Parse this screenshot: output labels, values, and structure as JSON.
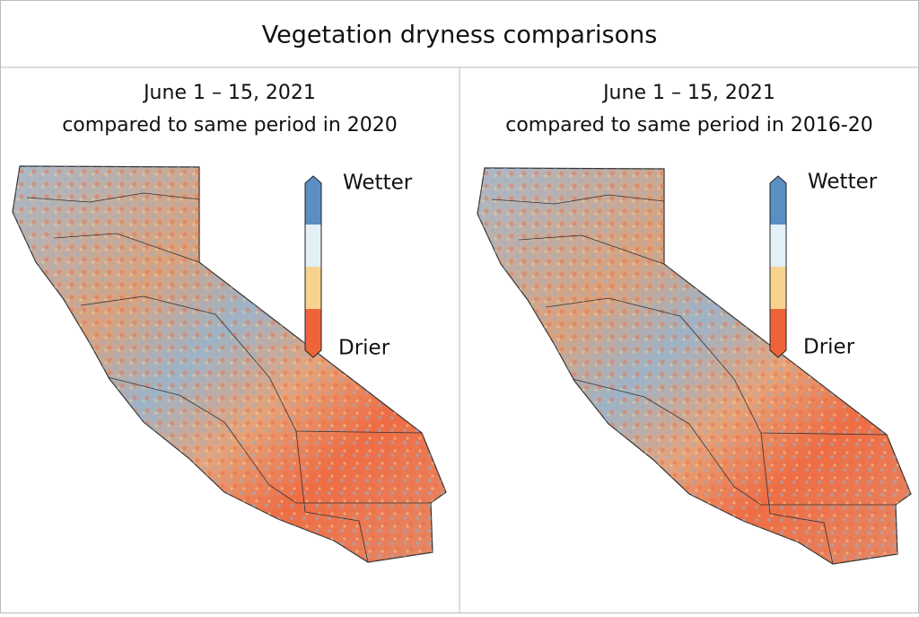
{
  "header": {
    "title": "Vegetation dryness comparisons"
  },
  "panels": [
    {
      "title_lines": [
        "June 1 – 15, 2021",
        "compared to same period in 2020"
      ],
      "legend": {
        "top": "Wetter",
        "bottom": "Drier"
      }
    },
    {
      "title_lines": [
        "June 1 – 15, 2021",
        "compared to same period in 2016-20"
      ],
      "legend": {
        "top": "Wetter",
        "bottom": "Drier"
      }
    }
  ]
}
